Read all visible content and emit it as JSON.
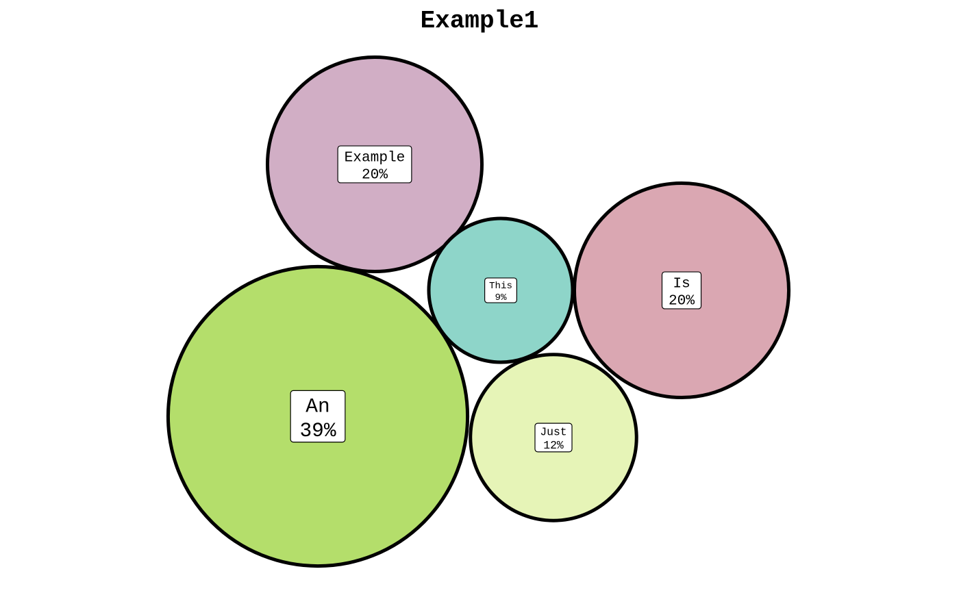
{
  "chart_data": {
    "type": "bubble",
    "title": "Example1",
    "grid": false,
    "legend": "none",
    "bubbles": [
      {
        "label": "Example",
        "value": 20,
        "percent_label": "20%",
        "color": "#D1AEC5"
      },
      {
        "label": "An",
        "value": 39,
        "percent_label": "39%",
        "color": "#B4DE6B"
      },
      {
        "label": "This",
        "value": 9,
        "percent_label": "9%",
        "color": "#8ED5C9"
      },
      {
        "label": "Is",
        "value": 20,
        "percent_label": "20%",
        "color": "#DAA7B2"
      },
      {
        "label": "Just",
        "value": 12,
        "percent_label": "12%",
        "color": "#E6F4B7"
      }
    ]
  }
}
